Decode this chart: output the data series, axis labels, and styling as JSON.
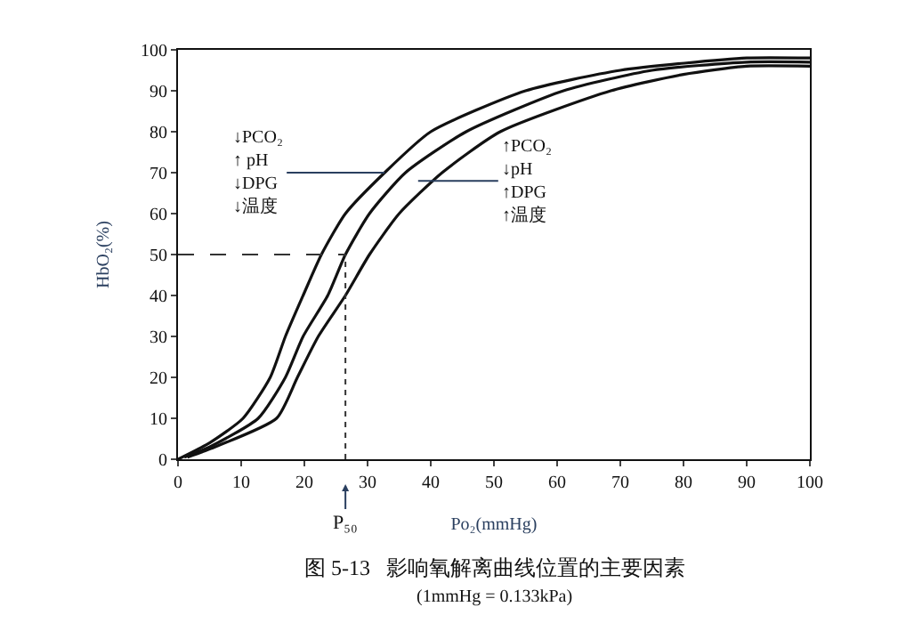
{
  "chart_data": {
    "type": "line",
    "title": "图 5-13   影响氧解离曲线位置的主要因素",
    "subtitle": "(1mmHg = 0.133kPa)",
    "xlabel": "Po₂(mmHg)",
    "ylabel": "HbO₂(%)",
    "series": [
      {
        "color": "#111111",
        "x": [
          0,
          5,
          10.3,
          14.6,
          17,
          19.8,
          22.7,
          26.5,
          32.7,
          40,
          55,
          70,
          90,
          100
        ],
        "values": [
          0,
          4,
          10,
          20,
          30,
          40,
          50,
          60,
          70,
          80,
          90,
          95,
          98,
          98
        ]
      },
      {
        "color": "#111111",
        "x": [
          1,
          5,
          12.7,
          17,
          19.8,
          23.7,
          26.5,
          30.3,
          36,
          45.6,
          61,
          75,
          90,
          100
        ],
        "values": [
          0.5,
          3,
          10,
          20,
          30,
          40,
          50,
          60,
          70,
          80,
          90,
          95,
          97,
          97
        ]
      },
      {
        "color": "#111111",
        "x": [
          1.5,
          5,
          15.6,
          18.9,
          22.2,
          26.5,
          30.3,
          35,
          41.8,
          51,
          68.5,
          80,
          90,
          100
        ],
        "values": [
          0.5,
          2.5,
          10,
          20,
          30,
          40,
          50,
          60,
          70,
          80,
          90,
          94,
          96,
          96
        ]
      }
    ],
    "xlim": [
      0,
      100
    ],
    "ylim": [
      0,
      100
    ],
    "xticks": [
      0,
      10,
      20,
      30,
      40,
      50,
      60,
      70,
      80,
      90,
      100
    ],
    "yticks": [
      0,
      10,
      20,
      30,
      40,
      50,
      60,
      70,
      80,
      90,
      100
    ],
    "ref_lines": [
      {
        "axis": "y",
        "value": 50,
        "line_style": "dashed",
        "color": "#333333"
      },
      {
        "axis": "x",
        "value": 26.5,
        "label": "P₅₀",
        "line_style": "dotted",
        "color": "#333333"
      }
    ],
    "annotations": [
      {
        "text": "↓PCO₂\n↑ pH\n↓DPG\n↓温度",
        "x": 32.7,
        "y": 70
      },
      {
        "text": "↑PCO₂\n↓pH\n↑DPG\n↑温度",
        "x": 38,
        "y": 68
      }
    ],
    "marker": "none",
    "line_style": "solid"
  }
}
